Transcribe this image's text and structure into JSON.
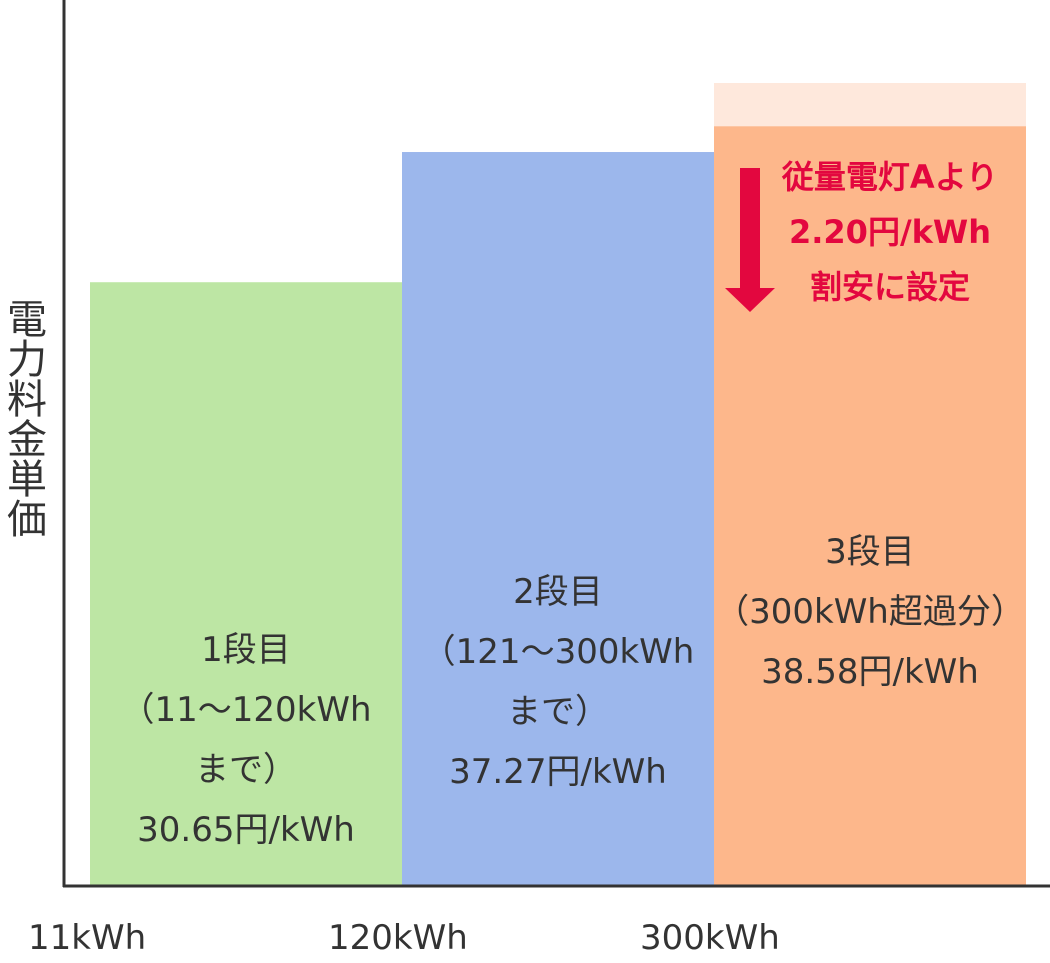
{
  "chart_data": {
    "type": "bar",
    "ylabel": "電力料金単価",
    "xlabel": "",
    "x_ticks": [
      "11kWh",
      "120kWh",
      "300kWh"
    ],
    "ylim": [
      0,
      45
    ],
    "bars": [
      {
        "tier": "1段目",
        "range": "（11〜120kWh",
        "range2": "まで）",
        "value": 30.65,
        "value_label": "30.65円/kWh",
        "color": "#bde6a4",
        "x_start": 11,
        "x_end": 120
      },
      {
        "tier": "2段目",
        "range": "（121〜300kWh",
        "range2": "まで）",
        "value": 37.27,
        "value_label": "37.27円/kWh",
        "color": "#9cb7ec",
        "x_start": 121,
        "x_end": 300
      },
      {
        "tier": "3段目",
        "range": "（300kWh超過分）",
        "range2": "",
        "value": 38.58,
        "value_label": "38.58円/kWh",
        "color": "#fdb78b",
        "x_start": 300,
        "x_end": null
      }
    ],
    "discount": {
      "base_value": 40.78,
      "color": "#fee8dc",
      "arrow_color": "#e3073f",
      "lines": [
        "従量電灯Aより",
        "2.20円/kWh",
        "割安に設定"
      ]
    },
    "grid": false,
    "axis_color": "#333333"
  }
}
